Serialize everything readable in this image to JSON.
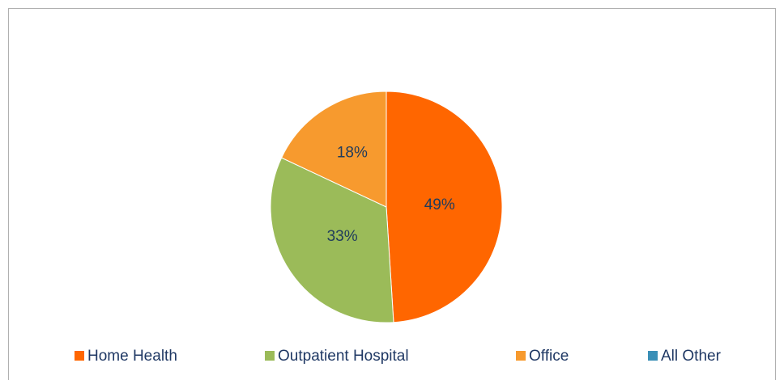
{
  "chart_data": {
    "type": "pie",
    "categories": [
      "Home Health",
      "Outpatient Hospital",
      "Office",
      "All Other"
    ],
    "values": [
      49,
      33,
      18,
      0
    ],
    "value_labels": [
      "49%",
      "33%",
      "18%",
      null
    ],
    "colors": [
      "#ff6600",
      "#9bbb59",
      "#f79a2e",
      "#3a8fb7"
    ],
    "legend": "bottom"
  }
}
